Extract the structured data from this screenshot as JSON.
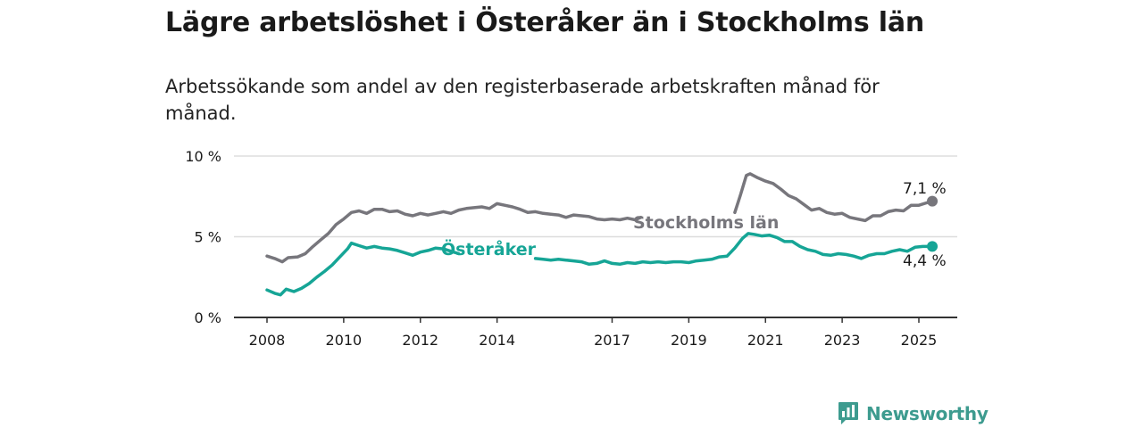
{
  "title": "Lägre arbetslöshet i Österåker än i Stockholms län",
  "subtitle": "Arbetssökande som andel av den registerbaserade arbetskraften månad för månad.",
  "brand": {
    "name": "Newsworthy",
    "icon": "newsworthy-logo-icon"
  },
  "colors": {
    "stockholm": "#77767c",
    "osteraker": "#16a596",
    "grid": "#dddddd",
    "axis": "#333333",
    "brand": "#3d9b8f"
  },
  "chart_data": {
    "type": "line",
    "ylim": [
      0,
      10
    ],
    "xlim": [
      2007.5,
      2026.0
    ],
    "y_ticks": [
      {
        "value": 0,
        "label": "0 %"
      },
      {
        "value": 5,
        "label": "5 %"
      },
      {
        "value": 10,
        "label": "10 %"
      }
    ],
    "x_ticks": [
      {
        "value": 2008,
        "label": "2008"
      },
      {
        "value": 2010,
        "label": "2010"
      },
      {
        "value": 2012,
        "label": "2012"
      },
      {
        "value": 2014,
        "label": "2014"
      },
      {
        "value": 2017,
        "label": "2017"
      },
      {
        "value": 2019,
        "label": "2019"
      },
      {
        "value": 2021,
        "label": "2021"
      },
      {
        "value": 2023,
        "label": "2023"
      },
      {
        "value": 2025,
        "label": "2025"
      }
    ],
    "grid": true,
    "series": [
      {
        "name": "Stockholms län",
        "end_label": "7,1 %",
        "segments": [
          [
            [
              2008.0,
              3.8
            ],
            [
              2008.2,
              3.65
            ],
            [
              2008.4,
              3.45
            ],
            [
              2008.55,
              3.7
            ],
            [
              2008.8,
              3.75
            ],
            [
              2009.0,
              3.95
            ],
            [
              2009.2,
              4.4
            ],
            [
              2009.4,
              4.8
            ],
            [
              2009.6,
              5.2
            ],
            [
              2009.8,
              5.75
            ],
            [
              2010.0,
              6.1
            ],
            [
              2010.2,
              6.5
            ],
            [
              2010.4,
              6.6
            ],
            [
              2010.6,
              6.45
            ],
            [
              2010.8,
              6.7
            ],
            [
              2011.0,
              6.7
            ],
            [
              2011.2,
              6.55
            ],
            [
              2011.4,
              6.6
            ],
            [
              2011.6,
              6.4
            ],
            [
              2011.8,
              6.3
            ],
            [
              2012.0,
              6.45
            ],
            [
              2012.2,
              6.35
            ],
            [
              2012.4,
              6.45
            ],
            [
              2012.6,
              6.55
            ],
            [
              2012.8,
              6.45
            ],
            [
              2013.0,
              6.65
            ],
            [
              2013.2,
              6.75
            ],
            [
              2013.4,
              6.8
            ],
            [
              2013.6,
              6.85
            ],
            [
              2013.8,
              6.75
            ],
            [
              2014.0,
              7.05
            ],
            [
              2014.2,
              6.95
            ],
            [
              2014.4,
              6.85
            ],
            [
              2014.6,
              6.7
            ],
            [
              2014.8,
              6.5
            ],
            [
              2015.0,
              6.55
            ],
            [
              2015.2,
              6.45
            ],
            [
              2015.4,
              6.4
            ],
            [
              2015.6,
              6.35
            ],
            [
              2015.8,
              6.2
            ],
            [
              2016.0,
              6.35
            ],
            [
              2016.2,
              6.3
            ],
            [
              2016.4,
              6.25
            ],
            [
              2016.6,
              6.1
            ],
            [
              2016.8,
              6.05
            ],
            [
              2017.0,
              6.1
            ],
            [
              2017.2,
              6.05
            ],
            [
              2017.4,
              6.15
            ],
            [
              2017.6,
              6.05
            ],
            [
              2017.75,
              6.2
            ]
          ],
          [
            [
              2020.2,
              6.5
            ],
            [
              2020.35,
              7.6
            ],
            [
              2020.5,
              8.8
            ],
            [
              2020.6,
              8.9
            ],
            [
              2020.8,
              8.65
            ],
            [
              2021.0,
              8.45
            ],
            [
              2021.2,
              8.3
            ],
            [
              2021.4,
              7.95
            ],
            [
              2021.6,
              7.55
            ],
            [
              2021.8,
              7.35
            ],
            [
              2022.0,
              7.0
            ],
            [
              2022.2,
              6.65
            ],
            [
              2022.4,
              6.75
            ],
            [
              2022.6,
              6.5
            ],
            [
              2022.8,
              6.4
            ],
            [
              2023.0,
              6.45
            ],
            [
              2023.2,
              6.2
            ],
            [
              2023.4,
              6.1
            ],
            [
              2023.6,
              6.0
            ],
            [
              2023.8,
              6.3
            ],
            [
              2024.0,
              6.3
            ],
            [
              2024.2,
              6.55
            ],
            [
              2024.4,
              6.65
            ],
            [
              2024.6,
              6.6
            ],
            [
              2024.8,
              6.95
            ],
            [
              2025.0,
              6.95
            ],
            [
              2025.2,
              7.1
            ],
            [
              2025.35,
              7.2
            ]
          ]
        ]
      },
      {
        "name": "Österåker",
        "end_label": "4,4 %",
        "segments": [
          [
            [
              2008.0,
              1.7
            ],
            [
              2008.2,
              1.5
            ],
            [
              2008.35,
              1.4
            ],
            [
              2008.5,
              1.75
            ],
            [
              2008.7,
              1.6
            ],
            [
              2008.9,
              1.8
            ],
            [
              2009.1,
              2.1
            ],
            [
              2009.3,
              2.5
            ],
            [
              2009.5,
              2.85
            ],
            [
              2009.7,
              3.25
            ],
            [
              2009.9,
              3.75
            ],
            [
              2010.1,
              4.25
            ],
            [
              2010.2,
              4.6
            ],
            [
              2010.4,
              4.45
            ],
            [
              2010.6,
              4.3
            ],
            [
              2010.8,
              4.4
            ],
            [
              2011.0,
              4.3
            ],
            [
              2011.2,
              4.25
            ],
            [
              2011.4,
              4.15
            ],
            [
              2011.6,
              4.0
            ],
            [
              2011.8,
              3.85
            ],
            [
              2012.0,
              4.05
            ],
            [
              2012.2,
              4.15
            ],
            [
              2012.4,
              4.3
            ],
            [
              2012.6,
              4.25
            ],
            [
              2012.8,
              4.1
            ],
            [
              2013.0,
              3.95
            ]
          ],
          [
            [
              2015.0,
              3.65
            ],
            [
              2015.2,
              3.6
            ],
            [
              2015.4,
              3.55
            ],
            [
              2015.6,
              3.6
            ],
            [
              2015.8,
              3.55
            ],
            [
              2016.0,
              3.5
            ],
            [
              2016.2,
              3.45
            ],
            [
              2016.4,
              3.3
            ],
            [
              2016.6,
              3.35
            ],
            [
              2016.8,
              3.5
            ],
            [
              2017.0,
              3.35
            ],
            [
              2017.2,
              3.3
            ],
            [
              2017.4,
              3.4
            ],
            [
              2017.6,
              3.35
            ],
            [
              2017.8,
              3.45
            ],
            [
              2018.0,
              3.4
            ],
            [
              2018.2,
              3.45
            ],
            [
              2018.4,
              3.4
            ],
            [
              2018.6,
              3.45
            ],
            [
              2018.8,
              3.45
            ],
            [
              2019.0,
              3.4
            ],
            [
              2019.2,
              3.5
            ],
            [
              2019.4,
              3.55
            ],
            [
              2019.6,
              3.6
            ],
            [
              2019.8,
              3.75
            ],
            [
              2020.0,
              3.8
            ],
            [
              2020.2,
              4.3
            ],
            [
              2020.4,
              4.9
            ],
            [
              2020.55,
              5.2
            ],
            [
              2020.7,
              5.15
            ],
            [
              2020.9,
              5.05
            ],
            [
              2021.1,
              5.1
            ],
            [
              2021.3,
              4.95
            ],
            [
              2021.5,
              4.7
            ],
            [
              2021.7,
              4.7
            ],
            [
              2021.9,
              4.4
            ],
            [
              2022.1,
              4.2
            ],
            [
              2022.3,
              4.1
            ],
            [
              2022.5,
              3.9
            ],
            [
              2022.7,
              3.85
            ],
            [
              2022.9,
              3.95
            ],
            [
              2023.1,
              3.9
            ],
            [
              2023.3,
              3.8
            ],
            [
              2023.5,
              3.65
            ],
            [
              2023.7,
              3.85
            ],
            [
              2023.9,
              3.95
            ],
            [
              2024.1,
              3.95
            ],
            [
              2024.3,
              4.1
            ],
            [
              2024.5,
              4.2
            ],
            [
              2024.7,
              4.1
            ],
            [
              2024.9,
              4.35
            ],
            [
              2025.1,
              4.4
            ],
            [
              2025.35,
              4.4
            ]
          ]
        ]
      }
    ]
  }
}
